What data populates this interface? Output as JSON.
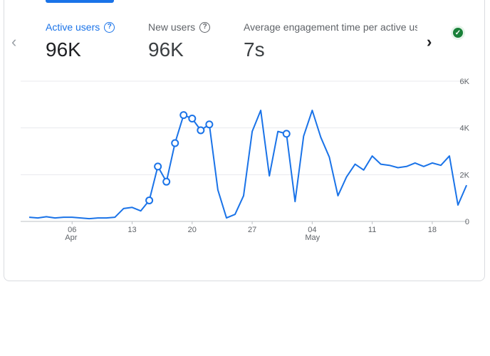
{
  "metrics": [
    {
      "label": "Active users",
      "value": "96K",
      "help": "?"
    },
    {
      "label": "New users",
      "value": "96K",
      "help": "?"
    },
    {
      "label": "Average engagement time per active us",
      "value": "7s"
    }
  ],
  "nav": {
    "prev_icon": "‹",
    "next_icon": "›"
  },
  "status_icon": "✓",
  "colors": {
    "accent": "#1a73e8",
    "line": "#1a73e8",
    "grid": "#e8eaed",
    "status": "#188038"
  },
  "chart_data": {
    "type": "line",
    "ylim": [
      0,
      6000
    ],
    "y_ticks": [
      {
        "label": "6K",
        "value": 6000
      },
      {
        "label": "4K",
        "value": 4000
      },
      {
        "label": "2K",
        "value": 2000
      },
      {
        "label": "0",
        "value": 0
      }
    ],
    "x_ticks": [
      {
        "day": 6,
        "label": "06",
        "month": "Apr"
      },
      {
        "day": 13,
        "label": "13",
        "month": ""
      },
      {
        "day": 20,
        "label": "20",
        "month": ""
      },
      {
        "day": 27,
        "label": "27",
        "month": ""
      },
      {
        "day": 34,
        "label": "04",
        "month": "May"
      },
      {
        "day": 41,
        "label": "11",
        "month": ""
      },
      {
        "day": 48,
        "label": "18",
        "month": ""
      }
    ],
    "series": [
      {
        "x": [
          1,
          2,
          3,
          4,
          5,
          6,
          7,
          8,
          9,
          10,
          11,
          12,
          13,
          14,
          15,
          16,
          17,
          18,
          19,
          20,
          21,
          22,
          23,
          24,
          25,
          26,
          27,
          28,
          29,
          30,
          31,
          32,
          33,
          34,
          35,
          36,
          37,
          38,
          39,
          40,
          41,
          42,
          43,
          44,
          45,
          46,
          47,
          48,
          49,
          50,
          51,
          52
        ],
        "y": [
          180,
          150,
          200,
          150,
          180,
          180,
          150,
          120,
          150,
          150,
          180,
          550,
          600,
          450,
          900,
          2350,
          1700,
          3350,
          4550,
          4400,
          3900,
          4150,
          1350,
          150,
          300,
          1100,
          3850,
          4750,
          1950,
          3850,
          3750,
          850,
          3650,
          4750,
          3600,
          2750,
          1100,
          1900,
          2450,
          2200,
          2800,
          2450,
          2400,
          2300,
          2350,
          2500,
          2350,
          2500,
          2400,
          2800,
          700,
          1550
        ]
      }
    ],
    "markers": [
      15,
      16,
      17,
      18,
      19,
      20,
      21,
      22,
      31
    ]
  }
}
